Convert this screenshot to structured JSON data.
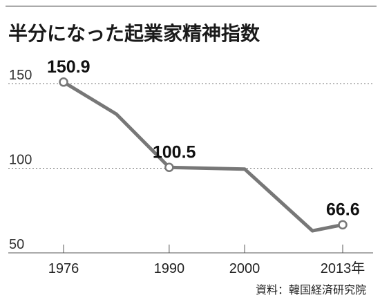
{
  "chart_data": {
    "type": "line",
    "title": "半分になった起業家精神指数",
    "source": "資料：韓国経済研究院",
    "x": [
      1976,
      1983,
      1990,
      2000,
      2009,
      2013
    ],
    "y": [
      150.9,
      132,
      100.5,
      99.5,
      63,
      66.6
    ],
    "xlim": [
      1976,
      2013
    ],
    "ylim": [
      50,
      150
    ],
    "x_ticks": [
      1976,
      1990,
      2000,
      2013
    ],
    "x_tick_labels": [
      "1976",
      "1990",
      "2000",
      "2013年"
    ],
    "y_ticks": [
      150,
      100,
      50
    ],
    "y_tick_labels": [
      "150",
      "100",
      "50"
    ],
    "grid": true,
    "labeled_points": [
      {
        "x": 1976,
        "y": 150.9,
        "label": "150.9"
      },
      {
        "x": 1990,
        "y": 100.5,
        "label": "100.5"
      },
      {
        "x": 2013,
        "y": 66.6,
        "label": "66.6"
      }
    ],
    "colors": {
      "line": "#777777",
      "text": "#1a1a1a",
      "grid": "#777777"
    }
  }
}
